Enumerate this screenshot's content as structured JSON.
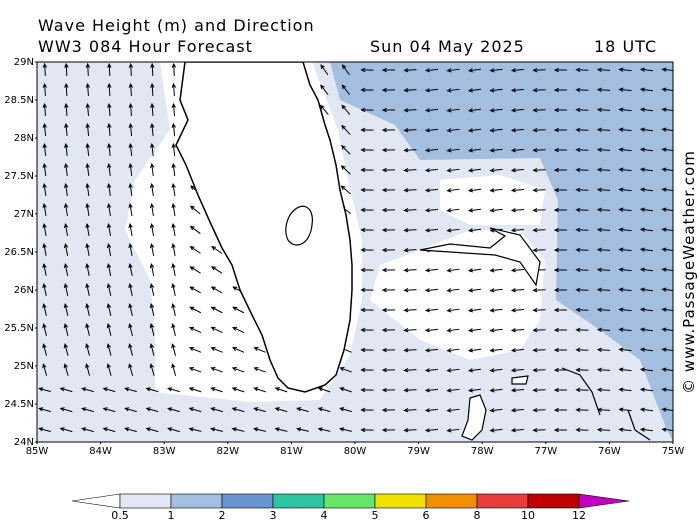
{
  "header": {
    "title": "Wave Height (m) and Direction",
    "subtitle": "WW3 084 Hour Forecast",
    "date": "Sun 04 May 2025",
    "time": "18 UTC"
  },
  "map": {
    "lat_labels": [
      "29N",
      "28.5N",
      "28N",
      "27.5N",
      "27N",
      "26.5N",
      "26N",
      "25.5N",
      "25N",
      "24.5N",
      "24N"
    ],
    "lon_labels": [
      "85W",
      "84W",
      "83W",
      "82W",
      "81W",
      "80W",
      "79W",
      "78W",
      "77W",
      "76W",
      "75W"
    ]
  },
  "legend": {
    "labels": [
      0.5,
      1,
      2,
      3,
      4,
      5,
      6,
      8,
      10,
      12
    ],
    "colors": [
      "#ffffff",
      "#e1e8f4",
      "#a4bedf",
      "#6a93d2",
      "#2ec4a0",
      "#66e666",
      "#f0e000",
      "#f09000",
      "#e83c3c",
      "#c00000",
      "#c000c0"
    ]
  },
  "credit": "© www.PassageWeather.com"
}
